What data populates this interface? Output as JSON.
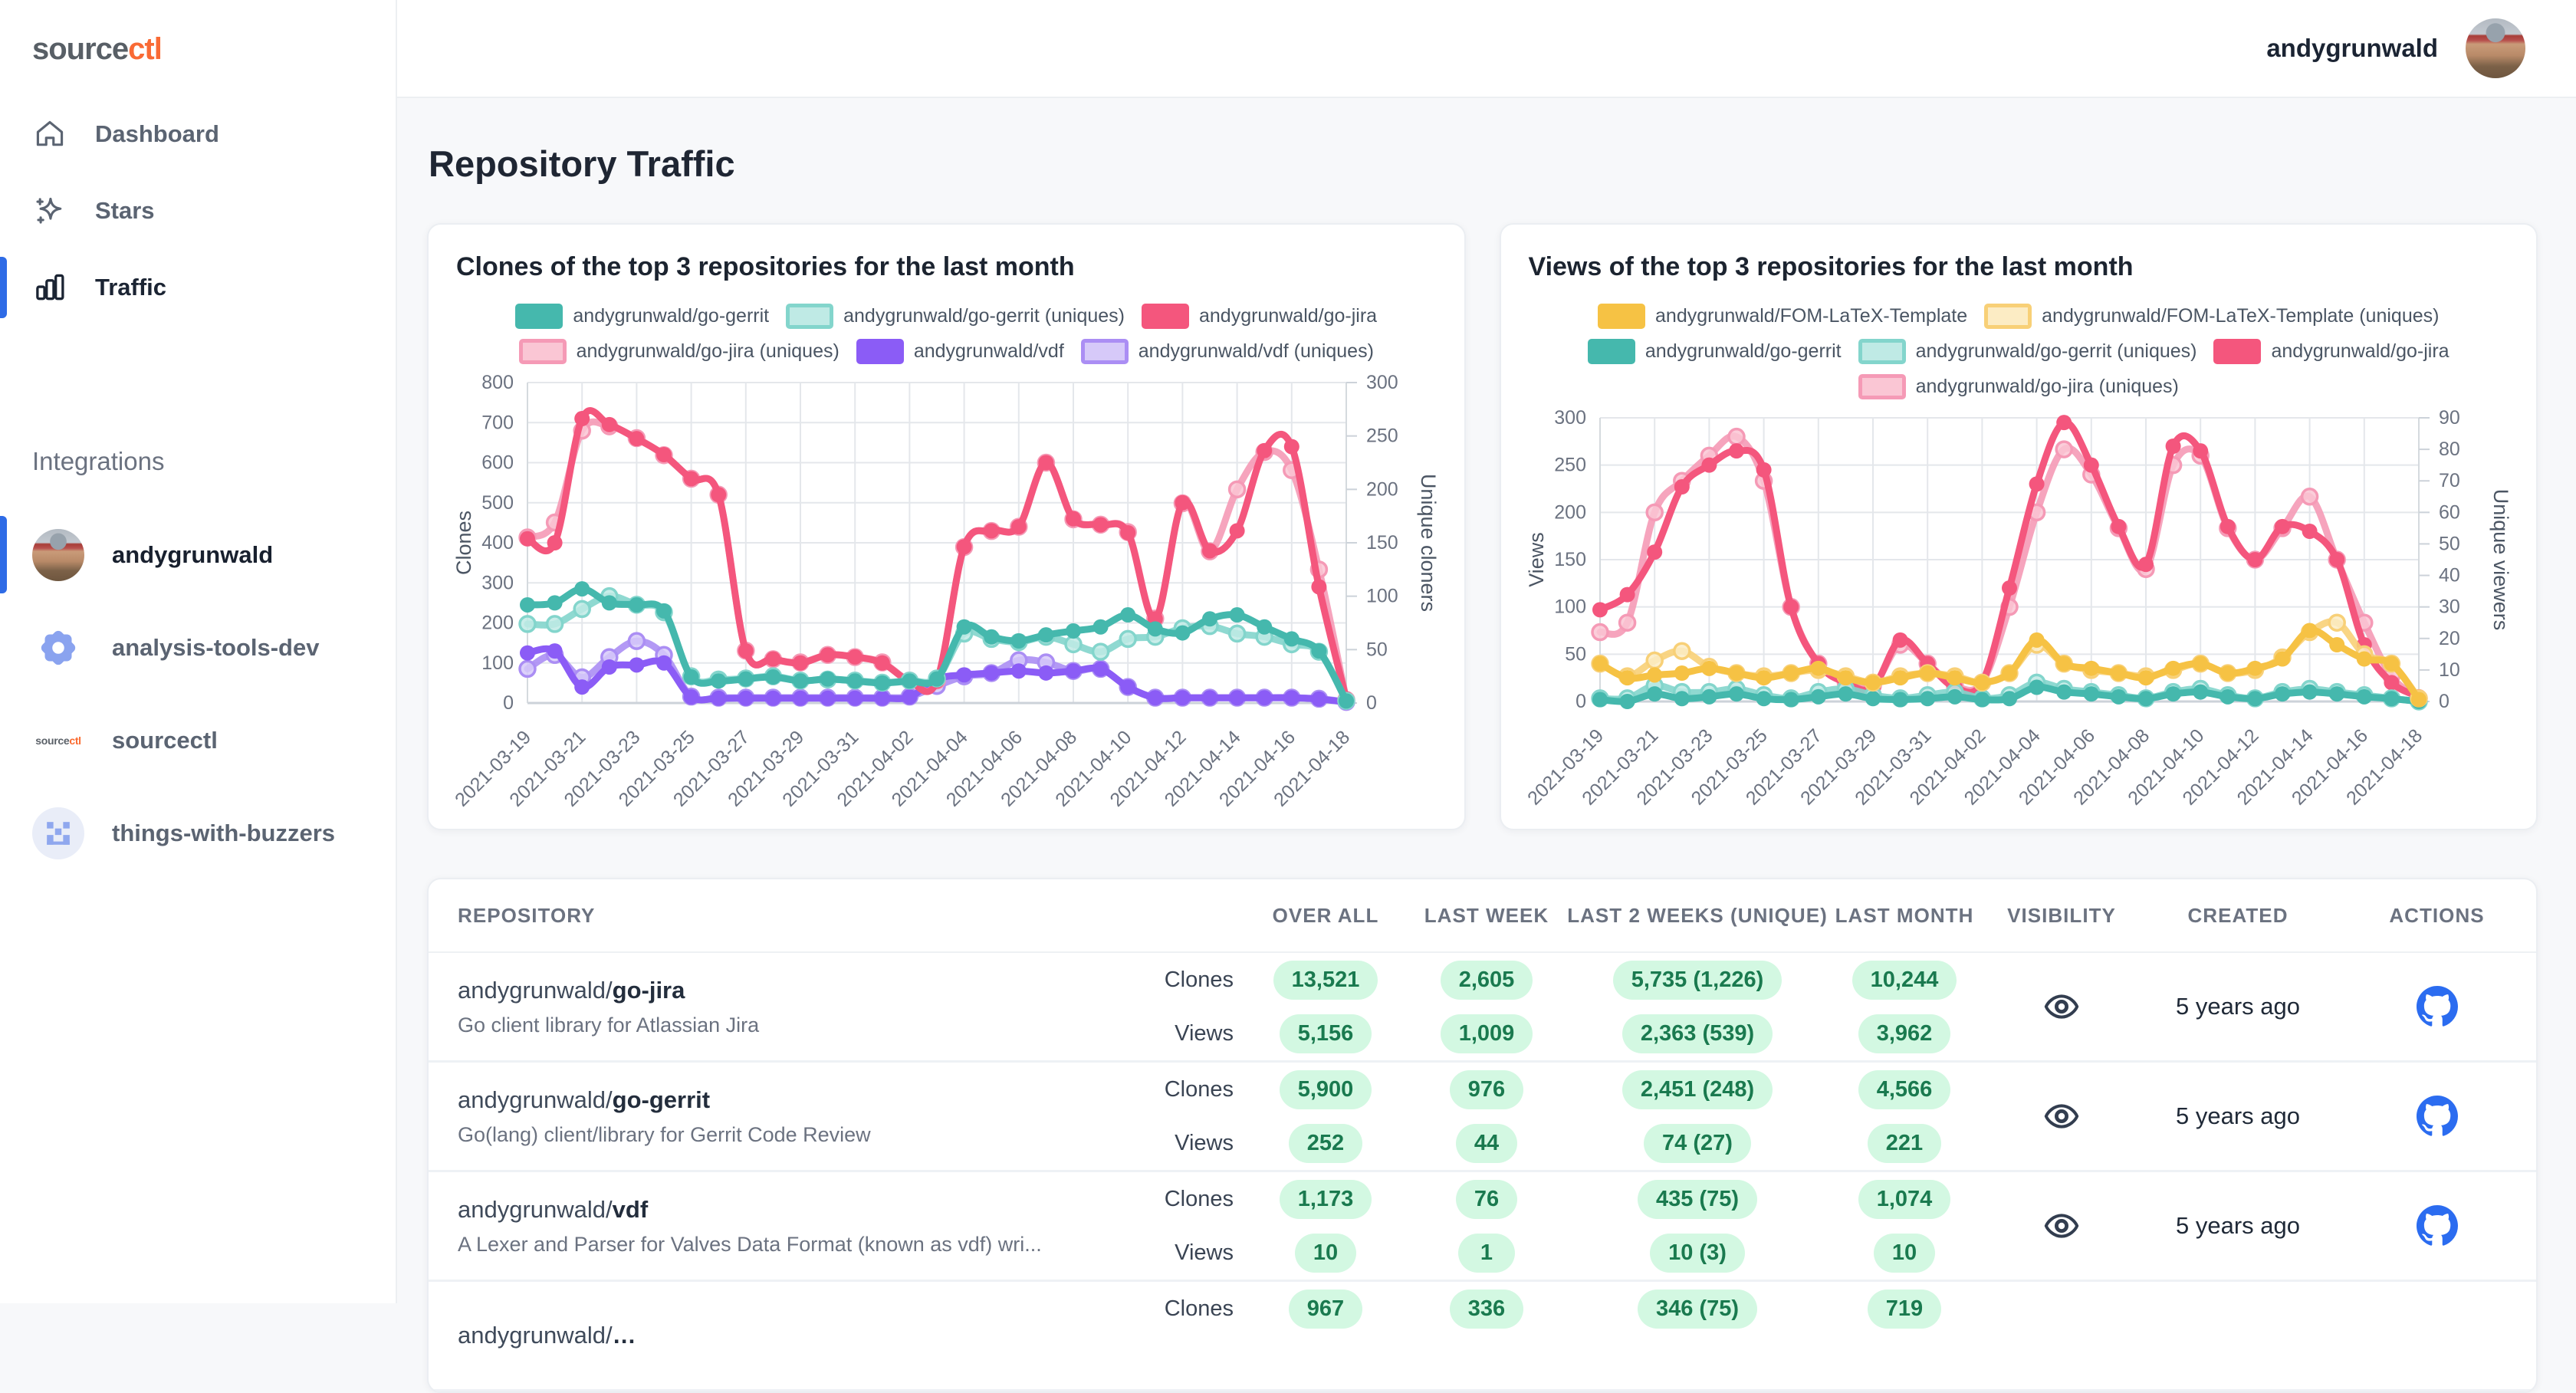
{
  "app": {
    "logo_source": "source",
    "logo_ctl": "ctl",
    "user": "andygrunwald"
  },
  "page": {
    "title": "Repository Traffic"
  },
  "sidebar": {
    "nav": [
      {
        "label": "Dashboard",
        "icon": "home-icon",
        "active": false
      },
      {
        "label": "Stars",
        "icon": "sparkles-icon",
        "active": false
      },
      {
        "label": "Traffic",
        "icon": "bar-chart-icon",
        "active": true
      }
    ],
    "integrations_label": "Integrations",
    "integrations": [
      {
        "label": "andygrunwald",
        "icon": "avatar",
        "active": true
      },
      {
        "label": "analysis-tools-dev",
        "icon": "gear-icon",
        "active": false
      },
      {
        "label": "sourcectl",
        "icon": "sourcectl-logo",
        "active": false
      },
      {
        "label": "things-with-buzzers",
        "icon": "buzzers-icon",
        "active": false
      }
    ]
  },
  "colors": {
    "accent_blue": "#2e6be6",
    "github_blue": "#2b6cf0",
    "pill_bg": "#d3f8e2",
    "pill_text": "#1a7a4f",
    "teal": "#45b8ad",
    "teal_light": "#bfeae5",
    "pink": "#f4567d",
    "pink_light": "#fac6d4",
    "purple": "#8b5cf6",
    "purple_light": "#d6c9f9",
    "yellow": "#f6c244",
    "yellow_light": "#fcecc4"
  },
  "chart_data": [
    {
      "type": "line",
      "title": "Clones of the top 3 repositories for the last month",
      "x": [
        "2021-03-19",
        "2021-03-20",
        "2021-03-21",
        "2021-03-22",
        "2021-03-23",
        "2021-03-24",
        "2021-03-25",
        "2021-03-26",
        "2021-03-27",
        "2021-03-28",
        "2021-03-29",
        "2021-03-30",
        "2021-03-31",
        "2021-04-01",
        "2021-04-02",
        "2021-04-03",
        "2021-04-04",
        "2021-04-05",
        "2021-04-06",
        "2021-04-07",
        "2021-04-08",
        "2021-04-09",
        "2021-04-10",
        "2021-04-11",
        "2021-04-12",
        "2021-04-13",
        "2021-04-14",
        "2021-04-15",
        "2021-04-16",
        "2021-04-17",
        "2021-04-18"
      ],
      "x_tick_every": 2,
      "grid": true,
      "legend_position": "top",
      "left_axis": {
        "label": "Clones",
        "min": 0,
        "max": 800,
        "step": 100
      },
      "right_axis": {
        "label": "Unique cloners",
        "min": 0,
        "max": 300,
        "step": 50
      },
      "series": [
        {
          "name": "andygrunwald/go-gerrit",
          "axis": "left",
          "style": "solid",
          "color": "#45b8ad",
          "values": [
            245,
            250,
            285,
            250,
            245,
            230,
            65,
            55,
            60,
            65,
            55,
            60,
            55,
            50,
            55,
            60,
            190,
            165,
            155,
            170,
            180,
            190,
            220,
            185,
            175,
            210,
            220,
            190,
            160,
            130,
            5
          ]
        },
        {
          "name": "andygrunwald/go-gerrit (uniques)",
          "axis": "right",
          "style": "light",
          "color": "#83d5cc",
          "fill": "#bfeae5",
          "values": [
            74,
            74,
            88,
            100,
            92,
            85,
            25,
            22,
            23,
            25,
            21,
            22,
            21,
            19,
            21,
            23,
            65,
            60,
            57,
            62,
            55,
            48,
            60,
            62,
            70,
            72,
            65,
            62,
            55,
            48,
            2
          ]
        },
        {
          "name": "andygrunwald/go-jira",
          "axis": "left",
          "style": "solid",
          "color": "#f4567d",
          "values": [
            410,
            400,
            710,
            695,
            660,
            620,
            560,
            520,
            130,
            110,
            100,
            120,
            115,
            100,
            55,
            55,
            390,
            430,
            440,
            600,
            460,
            445,
            425,
            210,
            500,
            380,
            430,
            630,
            640,
            290,
            10
          ]
        },
        {
          "name": "andygrunwald/go-jira (uniques)",
          "axis": "right",
          "style": "light",
          "color": "#f59ab6",
          "fill": "#fac6d4",
          "values": [
            155,
            169,
            255,
            259,
            248,
            232,
            210,
            195,
            49,
            41,
            38,
            45,
            43,
            38,
            21,
            21,
            146,
            161,
            165,
            225,
            172,
            167,
            160,
            79,
            187,
            142,
            200,
            235,
            218,
            125,
            3
          ]
        },
        {
          "name": "andygrunwald/vdf",
          "axis": "left",
          "style": "solid",
          "color": "#8b5cf6",
          "values": [
            125,
            130,
            40,
            90,
            95,
            100,
            15,
            12,
            12,
            12,
            12,
            12,
            12,
            12,
            15,
            60,
            70,
            75,
            80,
            75,
            80,
            85,
            40,
            13,
            13,
            13,
            13,
            13,
            13,
            10,
            2
          ]
        },
        {
          "name": "andygrunwald/vdf (uniques)",
          "axis": "right",
          "style": "light",
          "color": "#ab8ef4",
          "fill": "#d6c9f9",
          "values": [
            32,
            45,
            24,
            43,
            58,
            45,
            6,
            5,
            5,
            5,
            5,
            5,
            5,
            5,
            6,
            16,
            25,
            28,
            40,
            38,
            30,
            32,
            15,
            5,
            5,
            5,
            5,
            5,
            5,
            4,
            1
          ]
        }
      ]
    },
    {
      "type": "line",
      "title": "Views of the top 3 repositories for the last month",
      "x": [
        "2021-03-19",
        "2021-03-20",
        "2021-03-21",
        "2021-03-22",
        "2021-03-23",
        "2021-03-24",
        "2021-03-25",
        "2021-03-26",
        "2021-03-27",
        "2021-03-28",
        "2021-03-29",
        "2021-03-30",
        "2021-03-31",
        "2021-04-01",
        "2021-04-02",
        "2021-04-03",
        "2021-04-04",
        "2021-04-05",
        "2021-04-06",
        "2021-04-07",
        "2021-04-08",
        "2021-04-09",
        "2021-04-10",
        "2021-04-11",
        "2021-04-12",
        "2021-04-13",
        "2021-04-14",
        "2021-04-15",
        "2021-04-16",
        "2021-04-17",
        "2021-04-18"
      ],
      "x_tick_every": 2,
      "grid": true,
      "legend_position": "top",
      "left_axis": {
        "label": "Views",
        "min": 0,
        "max": 300,
        "step": 50
      },
      "right_axis": {
        "label": "Unique viewers",
        "min": 0,
        "max": 90,
        "step": 10
      },
      "series": [
        {
          "name": "andygrunwald/FOM-LaTeX-Template",
          "axis": "left",
          "style": "solid",
          "color": "#f6c244",
          "values": [
            40,
            25,
            28,
            30,
            35,
            30,
            25,
            30,
            35,
            25,
            20,
            25,
            30,
            25,
            20,
            30,
            65,
            40,
            35,
            30,
            25,
            35,
            40,
            30,
            35,
            45,
            75,
            60,
            45,
            40,
            2
          ]
        },
        {
          "name": "andygrunwald/FOM-LaTeX-Template (uniques)",
          "axis": "right",
          "style": "light",
          "color": "#f8d077",
          "fill": "#fcecc4",
          "values": [
            12,
            8,
            13,
            16,
            11,
            9,
            8,
            9,
            10,
            8,
            6,
            8,
            9,
            8,
            6,
            9,
            18,
            12,
            10,
            9,
            8,
            10,
            12,
            9,
            10,
            14,
            22,
            25,
            15,
            12,
            1
          ]
        },
        {
          "name": "andygrunwald/go-gerrit",
          "axis": "left",
          "style": "solid",
          "color": "#45b8ad",
          "values": [
            2,
            0,
            8,
            3,
            5,
            8,
            3,
            2,
            5,
            8,
            3,
            2,
            3,
            5,
            2,
            3,
            15,
            10,
            8,
            5,
            3,
            8,
            10,
            5,
            3,
            8,
            10,
            8,
            5,
            3,
            0
          ]
        },
        {
          "name": "andygrunwald/go-gerrit (uniques)",
          "axis": "right",
          "style": "light",
          "color": "#83d5cc",
          "fill": "#bfeae5",
          "values": [
            1,
            1,
            5,
            3,
            3,
            4,
            2,
            1,
            3,
            4,
            2,
            1,
            2,
            3,
            1,
            2,
            6,
            4,
            3,
            2,
            1,
            3,
            4,
            2,
            1,
            3,
            4,
            3,
            2,
            1,
            0
          ]
        },
        {
          "name": "andygrunwald/go-jira",
          "axis": "left",
          "style": "solid",
          "color": "#f4567d",
          "values": [
            97,
            113,
            158,
            227,
            250,
            265,
            245,
            100,
            40,
            20,
            15,
            65,
            40,
            15,
            20,
            120,
            230,
            295,
            250,
            185,
            145,
            270,
            265,
            185,
            150,
            185,
            180,
            150,
            60,
            20,
            5
          ]
        },
        {
          "name": "andygrunwald/go-jira (uniques)",
          "axis": "right",
          "style": "light",
          "color": "#f59ab6",
          "fill": "#fac6d4",
          "values": [
            22,
            25,
            60,
            70,
            78,
            84,
            70,
            30,
            12,
            6,
            5,
            18,
            12,
            5,
            6,
            30,
            60,
            80,
            72,
            55,
            42,
            75,
            78,
            55,
            45,
            55,
            65,
            45,
            25,
            8,
            1
          ]
        }
      ]
    }
  ],
  "table": {
    "headers": [
      "REPOSITORY",
      "OVER ALL",
      "LAST WEEK",
      "LAST 2 WEEKS (UNIQUE)",
      "LAST MONTH",
      "VISIBILITY",
      "CREATED",
      "ACTIONS"
    ],
    "row_labels": {
      "clones": "Clones",
      "views": "Views"
    },
    "rows": [
      {
        "owner": "andygrunwald/",
        "repo": "go-jira",
        "desc": "Go client library for Atlassian Jira",
        "clones": [
          "13,521",
          "2,605",
          "5,735 (1,226)",
          "10,244"
        ],
        "views": [
          "5,156",
          "1,009",
          "2,363 (539)",
          "3,962"
        ],
        "created": "5 years ago",
        "partial": false
      },
      {
        "owner": "andygrunwald/",
        "repo": "go-gerrit",
        "desc": "Go(lang) client/library for Gerrit Code Review",
        "clones": [
          "5,900",
          "976",
          "2,451 (248)",
          "4,566"
        ],
        "views": [
          "252",
          "44",
          "74 (27)",
          "221"
        ],
        "created": "5 years ago",
        "partial": false
      },
      {
        "owner": "andygrunwald/",
        "repo": "vdf",
        "desc": "A Lexer and Parser for Valves Data Format (known as vdf) wri...",
        "clones": [
          "1,173",
          "76",
          "435 (75)",
          "1,074"
        ],
        "views": [
          "10",
          "1",
          "10 (3)",
          "10"
        ],
        "created": "5 years ago",
        "partial": false
      },
      {
        "owner": "andygrunwald/",
        "repo": "…",
        "desc": "",
        "clones": [
          "967",
          "336",
          "346 (75)",
          "719"
        ],
        "views": [],
        "created": "",
        "partial": true
      }
    ]
  }
}
